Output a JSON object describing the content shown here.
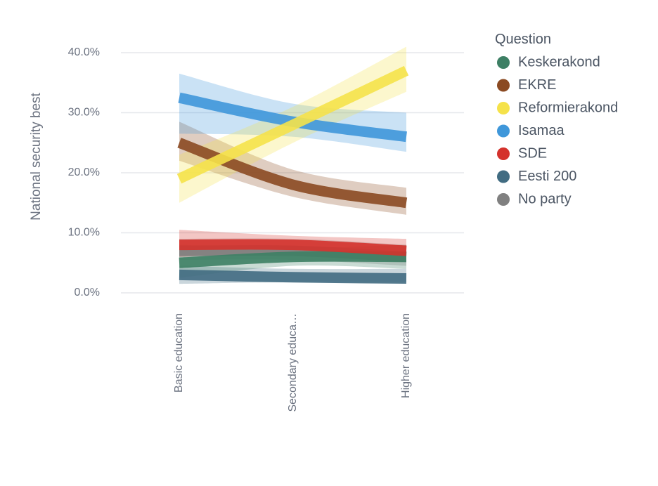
{
  "chart_data": {
    "type": "line",
    "title": "",
    "xlabel": "",
    "ylabel": "National security best",
    "categories": [
      "Basic education",
      "Secondary educa…",
      "Higher education"
    ],
    "ylim": [
      0,
      40
    ],
    "yticks": [
      "0.0%",
      "10.0%",
      "20.0%",
      "30.0%",
      "40.0%"
    ],
    "ytick_values": [
      0,
      10,
      20,
      30,
      40
    ],
    "grid": true,
    "legend": {
      "title": "Question",
      "position": "right"
    },
    "series": [
      {
        "name": "Keskerakond",
        "color": "#3d7f64",
        "values": [
          5.0,
          6.0,
          6.0
        ],
        "lower": [
          2.5,
          4.5,
          4.0
        ],
        "upper": [
          8.0,
          7.5,
          8.0
        ]
      },
      {
        "name": "EKRE",
        "color": "#8b4a22",
        "values": [
          25.0,
          18.0,
          15.0
        ],
        "lower": [
          22.0,
          16.0,
          13.0
        ],
        "upper": [
          28.5,
          20.5,
          17.5
        ]
      },
      {
        "name": "Reformierakond",
        "color": "#f5e24a",
        "values": [
          19.0,
          28.0,
          37.0
        ],
        "lower": [
          15.0,
          25.0,
          33.5
        ],
        "upper": [
          23.0,
          31.0,
          41.0
        ]
      },
      {
        "name": "Isamaa",
        "color": "#3f97da",
        "values": [
          32.5,
          28.5,
          26.0
        ],
        "lower": [
          26.5,
          26.0,
          23.5
        ],
        "upper": [
          36.5,
          31.5,
          30.0
        ]
      },
      {
        "name": "SDE",
        "color": "#d4322c",
        "values": [
          8.0,
          8.0,
          7.0
        ],
        "lower": [
          6.0,
          6.5,
          5.5
        ],
        "upper": [
          10.5,
          9.5,
          9.0
        ]
      },
      {
        "name": "Eesti 200",
        "color": "#416c82",
        "values": [
          3.0,
          2.6,
          2.4
        ],
        "lower": [
          1.5,
          1.8,
          1.8
        ],
        "upper": [
          4.5,
          4.0,
          4.0
        ]
      },
      {
        "name": "No party",
        "color": "#808080",
        "values": [
          7.0,
          7.0,
          6.0
        ],
        "lower": [
          5.5,
          5.5,
          4.5
        ],
        "upper": [
          9.0,
          9.0,
          8.0
        ]
      }
    ]
  }
}
